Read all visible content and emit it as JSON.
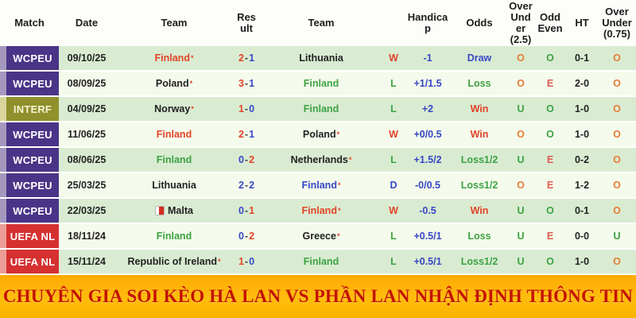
{
  "palette": {
    "text": {
      "red": "#e14328",
      "green": "#3da244",
      "blue": "#3747c5",
      "orange": "#e87a35",
      "salmon": "#dd5b50",
      "black": "#222222"
    },
    "badges": {
      "wcpeu": {
        "bg": "#4a3487",
        "edge": "#a498bf",
        "text": "#ffffff"
      },
      "interf": {
        "bg": "#90902c",
        "edge": "#d9d59b",
        "text": "#f7f4d4"
      },
      "uefanl": {
        "bg": "#d63031",
        "edge": "#eb9d96",
        "text": "#ffffff"
      }
    },
    "row_green": "#d9ecd2",
    "row_cream": "#f5fbec"
  },
  "header": {
    "columns": [
      {
        "key": "match",
        "label": "Match"
      },
      {
        "key": "date",
        "label": "Date"
      },
      {
        "key": "team1",
        "label": "Team"
      },
      {
        "key": "result",
        "label": "Result"
      },
      {
        "key": "team2",
        "label": "Team"
      },
      {
        "key": "wl",
        "label": ""
      },
      {
        "key": "handicap",
        "label": "Handicap"
      },
      {
        "key": "odds",
        "label": "Odds"
      },
      {
        "key": "ou25",
        "label": "Over Under (2.5)"
      },
      {
        "key": "oe",
        "label": "Odd Even"
      },
      {
        "key": "ht",
        "label": "HT"
      },
      {
        "key": "ou075",
        "label": "Over Under (0.75)"
      }
    ]
  },
  "rows": [
    {
      "match": {
        "label": "WCPEU",
        "style": "wcpeu"
      },
      "date": "09/10/25",
      "team1": {
        "name": "Finland",
        "star": true,
        "color": "red",
        "flag": false
      },
      "result": {
        "left": "2",
        "right": "1",
        "left_color": "red",
        "right_color": "blue"
      },
      "team2": {
        "name": "Lithuania",
        "star": false,
        "color": "black",
        "flag": false
      },
      "wl": {
        "text": "W",
        "color": "red"
      },
      "handicap": "-1",
      "odds": {
        "text": "Draw",
        "color": "blue"
      },
      "ou25": {
        "text": "O",
        "color": "orange"
      },
      "oe": {
        "text": "O",
        "color": "green"
      },
      "ht": "0-1",
      "ou075": {
        "text": "O",
        "color": "orange"
      }
    },
    {
      "match": {
        "label": "WCPEU",
        "style": "wcpeu"
      },
      "date": "08/09/25",
      "team1": {
        "name": "Poland",
        "star": true,
        "color": "black",
        "flag": false
      },
      "result": {
        "left": "3",
        "right": "1",
        "left_color": "red",
        "right_color": "blue"
      },
      "team2": {
        "name": "Finland",
        "star": false,
        "color": "green",
        "flag": false
      },
      "wl": {
        "text": "L",
        "color": "green"
      },
      "handicap": "+1/1.5",
      "odds": {
        "text": "Loss",
        "color": "green"
      },
      "ou25": {
        "text": "O",
        "color": "orange"
      },
      "oe": {
        "text": "E",
        "color": "salmon"
      },
      "ht": "2-0",
      "ou075": {
        "text": "O",
        "color": "orange"
      }
    },
    {
      "match": {
        "label": "INTERF",
        "style": "interf"
      },
      "date": "04/09/25",
      "team1": {
        "name": "Norway",
        "star": true,
        "color": "black",
        "flag": false
      },
      "result": {
        "left": "1",
        "right": "0",
        "left_color": "red",
        "right_color": "blue"
      },
      "team2": {
        "name": "Finland",
        "star": false,
        "color": "green",
        "flag": false
      },
      "wl": {
        "text": "L",
        "color": "green"
      },
      "handicap": "+2",
      "odds": {
        "text": "Win",
        "color": "red"
      },
      "ou25": {
        "text": "U",
        "color": "green"
      },
      "oe": {
        "text": "O",
        "color": "green"
      },
      "ht": "1-0",
      "ou075": {
        "text": "O",
        "color": "orange"
      }
    },
    {
      "match": {
        "label": "WCPEU",
        "style": "wcpeu"
      },
      "date": "11/06/25",
      "team1": {
        "name": "Finland",
        "star": false,
        "color": "red",
        "flag": false
      },
      "result": {
        "left": "2",
        "right": "1",
        "left_color": "red",
        "right_color": "blue"
      },
      "team2": {
        "name": "Poland",
        "star": true,
        "color": "black",
        "flag": false
      },
      "wl": {
        "text": "W",
        "color": "red"
      },
      "handicap": "+0/0.5",
      "odds": {
        "text": "Win",
        "color": "red"
      },
      "ou25": {
        "text": "O",
        "color": "orange"
      },
      "oe": {
        "text": "O",
        "color": "green"
      },
      "ht": "1-0",
      "ou075": {
        "text": "O",
        "color": "orange"
      }
    },
    {
      "match": {
        "label": "WCPEU",
        "style": "wcpeu"
      },
      "date": "08/06/25",
      "team1": {
        "name": "Finland",
        "star": false,
        "color": "green",
        "flag": false
      },
      "result": {
        "left": "0",
        "right": "2",
        "left_color": "blue",
        "right_color": "red"
      },
      "team2": {
        "name": "Netherlands",
        "star": true,
        "color": "black",
        "flag": false
      },
      "wl": {
        "text": "L",
        "color": "green"
      },
      "handicap": "+1.5/2",
      "odds": {
        "text": "Loss1/2",
        "color": "green"
      },
      "ou25": {
        "text": "U",
        "color": "green"
      },
      "oe": {
        "text": "E",
        "color": "salmon"
      },
      "ht": "0-2",
      "ou075": {
        "text": "O",
        "color": "orange"
      }
    },
    {
      "match": {
        "label": "WCPEU",
        "style": "wcpeu"
      },
      "date": "25/03/25",
      "team1": {
        "name": "Lithuania",
        "star": false,
        "color": "black",
        "flag": false
      },
      "result": {
        "left": "2",
        "right": "2",
        "left_color": "blue",
        "right_color": "blue"
      },
      "team2": {
        "name": "Finland",
        "star": true,
        "color": "blue",
        "flag": false
      },
      "wl": {
        "text": "D",
        "color": "blue"
      },
      "handicap": "-0/0.5",
      "odds": {
        "text": "Loss1/2",
        "color": "green"
      },
      "ou25": {
        "text": "O",
        "color": "orange"
      },
      "oe": {
        "text": "E",
        "color": "salmon"
      },
      "ht": "1-2",
      "ou075": {
        "text": "O",
        "color": "orange"
      }
    },
    {
      "match": {
        "label": "WCPEU",
        "style": "wcpeu"
      },
      "date": "22/03/25",
      "team1": {
        "name": "Malta",
        "star": false,
        "color": "black",
        "flag": true
      },
      "result": {
        "left": "0",
        "right": "1",
        "left_color": "blue",
        "right_color": "red"
      },
      "team2": {
        "name": "Finland",
        "star": true,
        "color": "red",
        "flag": false
      },
      "wl": {
        "text": "W",
        "color": "red"
      },
      "handicap": "-0.5",
      "odds": {
        "text": "Win",
        "color": "red"
      },
      "ou25": {
        "text": "U",
        "color": "green"
      },
      "oe": {
        "text": "O",
        "color": "green"
      },
      "ht": "0-1",
      "ou075": {
        "text": "O",
        "color": "orange"
      }
    },
    {
      "match": {
        "label": "UEFA NL",
        "style": "uefanl"
      },
      "date": "18/11/24",
      "team1": {
        "name": "Finland",
        "star": false,
        "color": "green",
        "flag": false
      },
      "result": {
        "left": "0",
        "right": "2",
        "left_color": "blue",
        "right_color": "red"
      },
      "team2": {
        "name": "Greece",
        "star": true,
        "color": "black",
        "flag": false
      },
      "wl": {
        "text": "L",
        "color": "green"
      },
      "handicap": "+0.5/1",
      "odds": {
        "text": "Loss",
        "color": "green"
      },
      "ou25": {
        "text": "U",
        "color": "green"
      },
      "oe": {
        "text": "E",
        "color": "salmon"
      },
      "ht": "0-0",
      "ou075": {
        "text": "U",
        "color": "green"
      }
    },
    {
      "match": {
        "label": "UEFA NL",
        "style": "uefanl"
      },
      "date": "15/11/24",
      "team1": {
        "name": "Republic of Ireland",
        "star": true,
        "color": "black",
        "flag": false
      },
      "result": {
        "left": "1",
        "right": "0",
        "left_color": "red",
        "right_color": "blue"
      },
      "team2": {
        "name": "Finland",
        "star": false,
        "color": "green",
        "flag": false
      },
      "wl": {
        "text": "L",
        "color": "green"
      },
      "handicap": "+0.5/1",
      "odds": {
        "text": "Loss1/2",
        "color": "green"
      },
      "ou25": {
        "text": "U",
        "color": "green"
      },
      "oe": {
        "text": "O",
        "color": "green"
      },
      "ht": "1-0",
      "ou075": {
        "text": "O",
        "color": "orange"
      }
    }
  ],
  "banner": {
    "text": "CHUYÊN GIA SOI KÈO HÀ LAN VS PHẦN LAN NHẬN ĐỊNH THÔNG TIN",
    "text_color": "#c41300",
    "bg_color": "#ffb507"
  }
}
